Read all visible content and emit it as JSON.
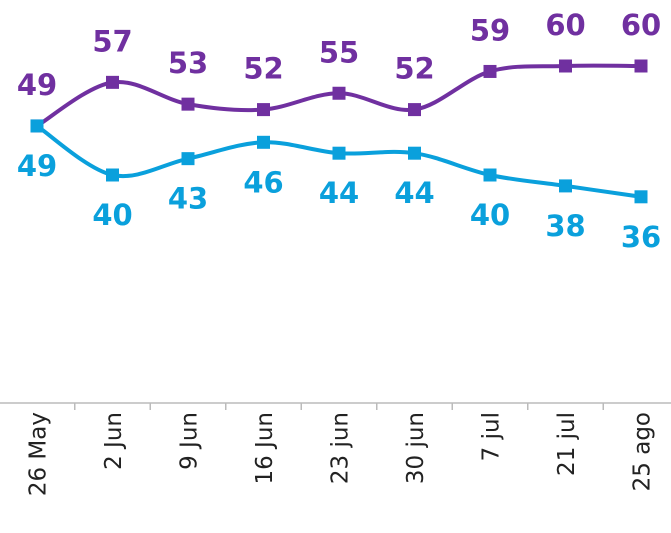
{
  "chart_data": {
    "type": "line",
    "categories": [
      "26 May",
      "2 Jun",
      "9 Jun",
      "16 Jun",
      "23 jun",
      "30 jun",
      "7 jul",
      "21 jul",
      "25 ago"
    ],
    "series": [
      {
        "color": "#7030a0",
        "values": [
          49,
          57,
          53,
          52,
          55,
          52,
          59,
          60,
          60
        ]
      },
      {
        "color": "#0aa0dc",
        "values": [
          49,
          40,
          43,
          46,
          44,
          44,
          40,
          38,
          36
        ]
      }
    ],
    "ylim": [
      0,
      70
    ],
    "grid": false,
    "data_labels": true
  }
}
